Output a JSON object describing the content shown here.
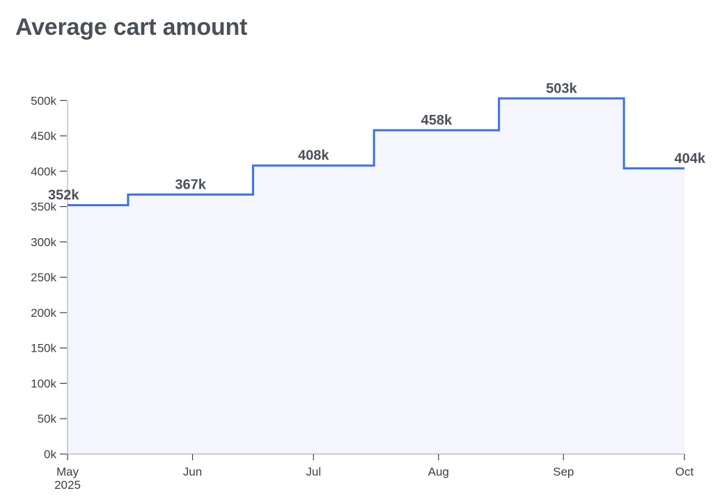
{
  "chart_data": {
    "type": "line",
    "step": "post",
    "title": "Average cart amount",
    "xlabel": "",
    "ylabel": "",
    "x": [
      "2025-05-01",
      "2025-05-16",
      "2025-06-16",
      "2025-07-16",
      "2025-08-16",
      "2025-09-16"
    ],
    "values": [
      352000,
      367000,
      408000,
      458000,
      503000,
      404000
    ],
    "data_labels": [
      "352k",
      "367k",
      "408k",
      "458k",
      "503k",
      "404k"
    ],
    "xlim": [
      "2025-05-01",
      "2025-10-01"
    ],
    "ylim": [
      0,
      520000
    ],
    "x_ticks": [
      {
        "value": "2025-05-01",
        "label": "May",
        "sublabel": "2025"
      },
      {
        "value": "2025-06-01",
        "label": "Jun"
      },
      {
        "value": "2025-07-01",
        "label": "Jul"
      },
      {
        "value": "2025-08-01",
        "label": "Aug"
      },
      {
        "value": "2025-09-01",
        "label": "Sep"
      },
      {
        "value": "2025-10-01",
        "label": "Oct"
      }
    ],
    "y_ticks": [
      {
        "value": 0,
        "label": "0k"
      },
      {
        "value": 50000,
        "label": "50k"
      },
      {
        "value": 100000,
        "label": "100k"
      },
      {
        "value": 150000,
        "label": "150k"
      },
      {
        "value": 200000,
        "label": "200k"
      },
      {
        "value": 250000,
        "label": "250k"
      },
      {
        "value": 300000,
        "label": "300k"
      },
      {
        "value": 350000,
        "label": "350k"
      },
      {
        "value": 400000,
        "label": "400k"
      },
      {
        "value": 450000,
        "label": "450k"
      },
      {
        "value": 500000,
        "label": "500k"
      }
    ],
    "grid": false,
    "line_color": "#3a6ff0",
    "area_fill": "#f5f5fe",
    "text_color": "#4a5057"
  }
}
